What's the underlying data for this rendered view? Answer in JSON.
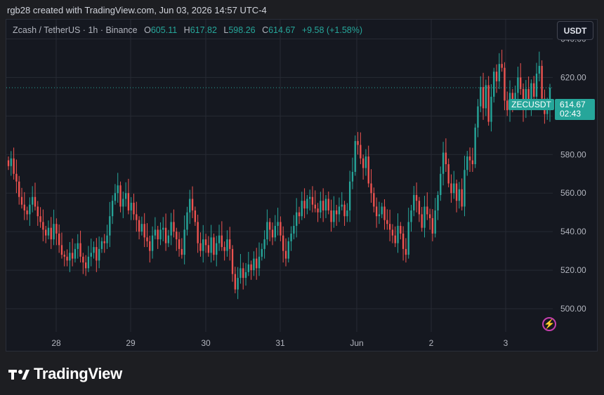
{
  "header": {
    "credit": "rgb28 created with TradingView.com, Jun 03, 2026 14:57 UTC-4"
  },
  "legend": {
    "symbol": "Zcash / TetherUS · 1h · Binance",
    "o_label": "O",
    "o_value": "605.11",
    "h_label": "H",
    "h_value": "617.82",
    "l_label": "L",
    "l_value": "598.26",
    "c_label": "C",
    "c_value": "614.67",
    "change": "+9.58 (+1.58%)"
  },
  "toolbar": {
    "currency": "USDT"
  },
  "price_tag": {
    "symbol": "ZECUSDT",
    "price": "614.67",
    "countdown": "02:43"
  },
  "brand": {
    "name": "TradingView"
  },
  "colors": {
    "up": "#26a69a",
    "down": "#ef5350",
    "background": "#151820",
    "grid": "#262a33"
  },
  "chart_data": {
    "type": "candlestick",
    "title": "Zcash / TetherUS",
    "interval": "1h",
    "exchange": "Binance",
    "ylim": [
      488,
      650
    ],
    "y_ticks": [
      "500.00",
      "520.00",
      "540.00",
      "560.00",
      "580.00",
      "600.00",
      "620.00",
      "640.00"
    ],
    "x_ticks": [
      "28",
      "29",
      "30",
      "31",
      "Jun",
      "2",
      "3"
    ],
    "last_price": 614.67,
    "grid": true,
    "series": [
      {
        "name": "ZECUSDT",
        "close": [
          574,
          578,
          570,
          566,
          558,
          554,
          551,
          549,
          554,
          558,
          553,
          548,
          545,
          541,
          538,
          542,
          536,
          544,
          539,
          533,
          528,
          527,
          525,
          529,
          526,
          531,
          534,
          527,
          524,
          521,
          527,
          529,
          532,
          525,
          531,
          535,
          534,
          538,
          548,
          556,
          560,
          564,
          553,
          557,
          560,
          551,
          555,
          549,
          546,
          540,
          544,
          537,
          535,
          530,
          538,
          541,
          536,
          541,
          542,
          534,
          538,
          545,
          540,
          536,
          531,
          528,
          541,
          550,
          557,
          551,
          545,
          534,
          530,
          536,
          533,
          529,
          537,
          528,
          534,
          538,
          532,
          530,
          536,
          531,
          518,
          510,
          516,
          521,
          516,
          519,
          523,
          520,
          526,
          521,
          527,
          531,
          536,
          545,
          541,
          537,
          543,
          545,
          538,
          530,
          526,
          535,
          539,
          543,
          550,
          548,
          556,
          552,
          557,
          558,
          554,
          552,
          550,
          556,
          551,
          557,
          551,
          545,
          551,
          549,
          553,
          554,
          548,
          551,
          566,
          571,
          587,
          585,
          578,
          573,
          579,
          565,
          560,
          553,
          548,
          549,
          553,
          546,
          544,
          541,
          538,
          534,
          543,
          539,
          531,
          528,
          545,
          551,
          559,
          556,
          549,
          542,
          553,
          549,
          547,
          539,
          551,
          559,
          570,
          581,
          575,
          565,
          560,
          565,
          556,
          562,
          553,
          572,
          579,
          577,
          575,
          594,
          605,
          615,
          604,
          616,
          597,
          610,
          623,
          618,
          627,
          625,
          608,
          603,
          612,
          606,
          612,
          620,
          614,
          603,
          614,
          605,
          617,
          610,
          622,
          626,
          609,
          601,
          603,
          614.67
        ]
      }
    ]
  }
}
